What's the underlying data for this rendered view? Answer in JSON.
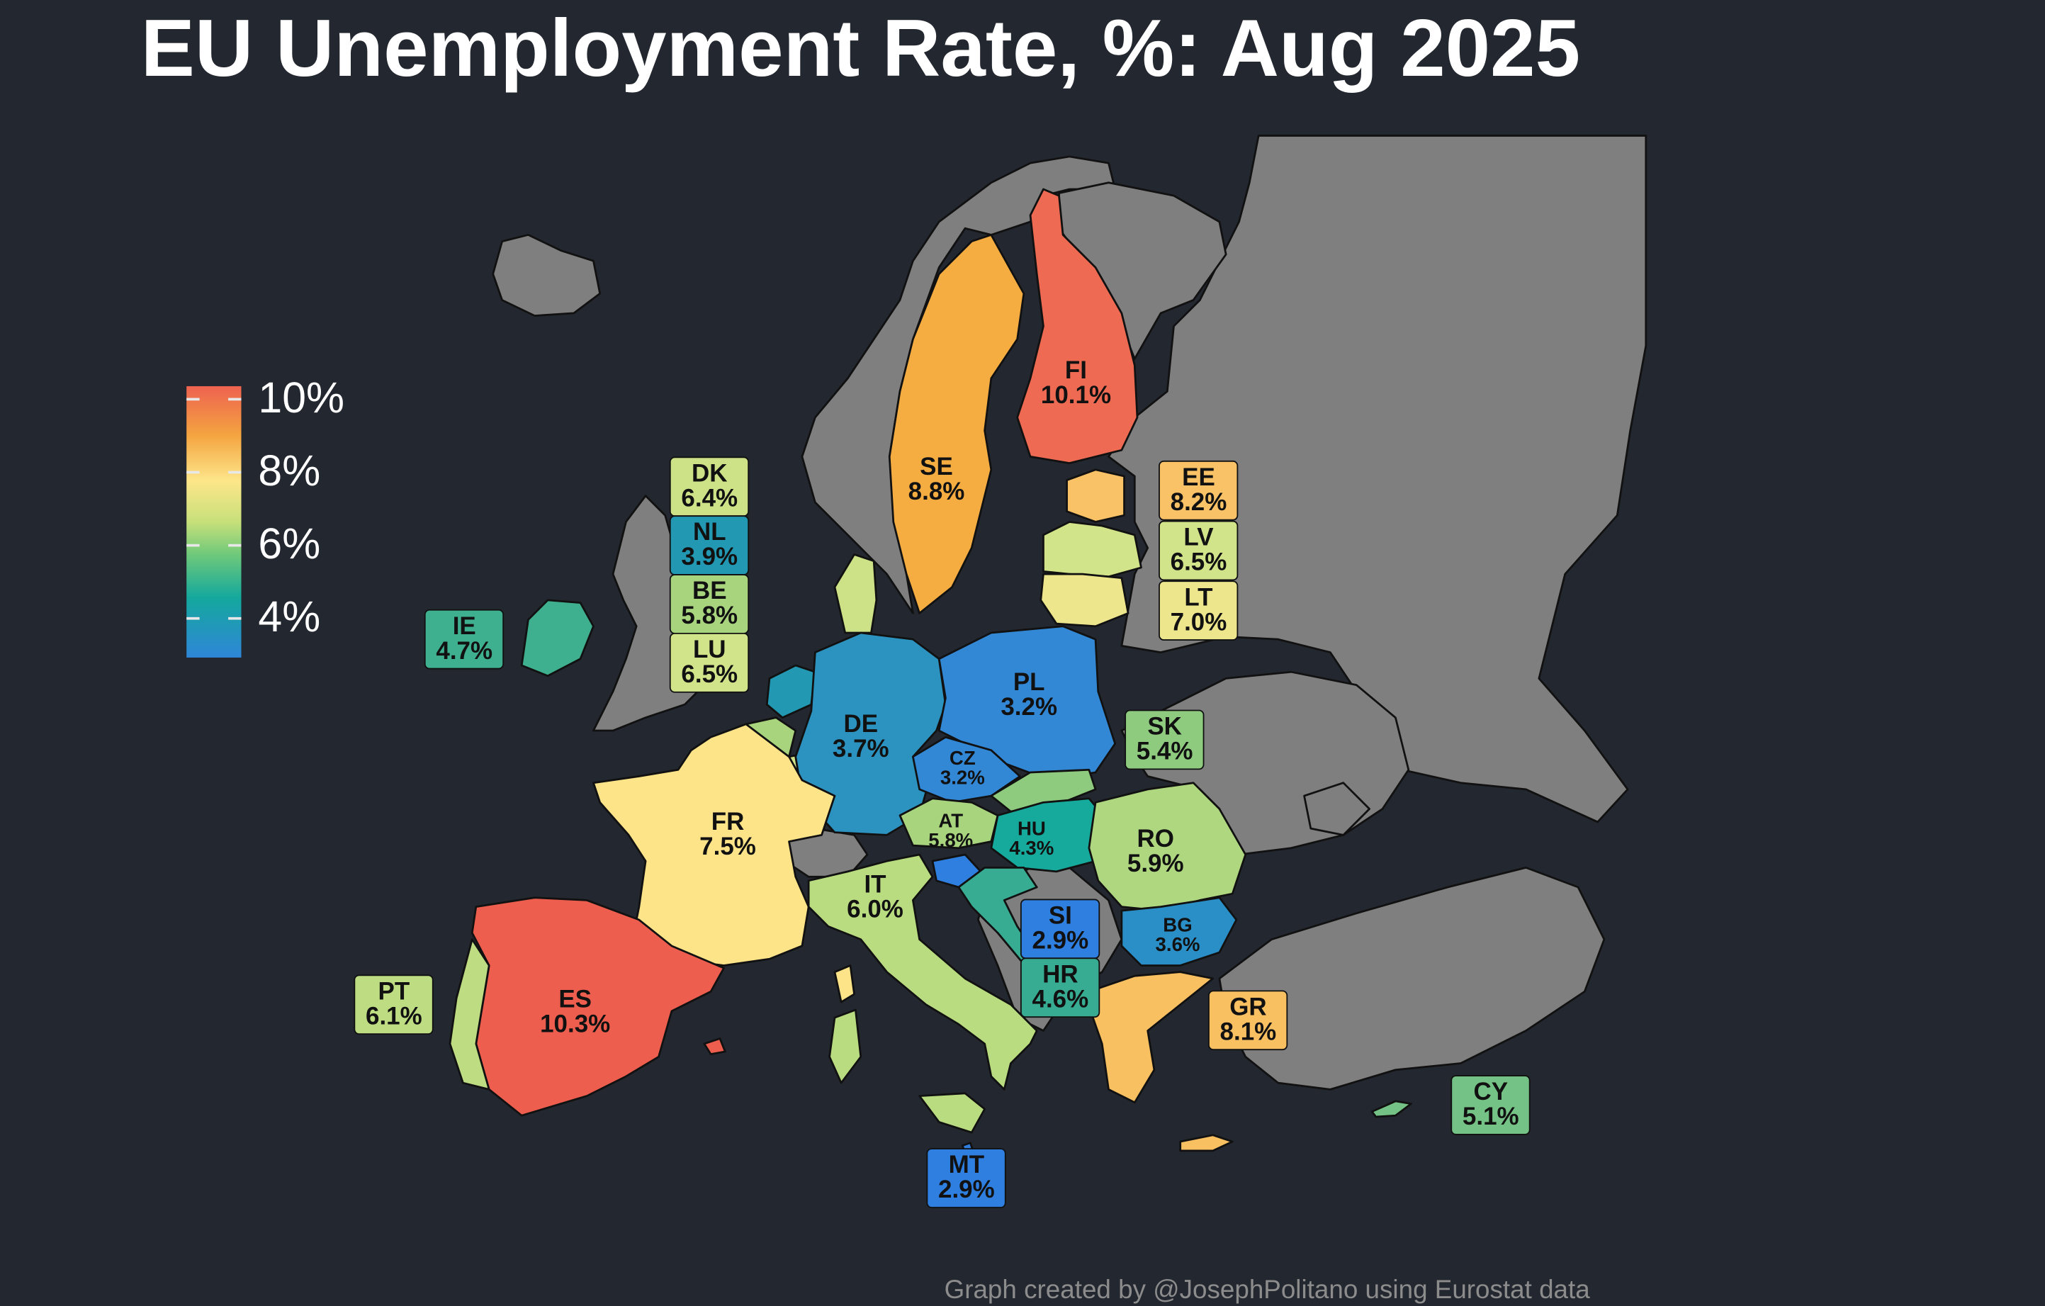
{
  "title": "EU Unemployment Rate, %: Aug 2025",
  "credit": "Graph created by @JosephPolitano using Eurostat data",
  "legend": {
    "ticks": [
      "10%",
      "8%",
      "6%",
      "4%"
    ],
    "colors": {
      "high": "#ee6250",
      "mid_high": "#f4a440",
      "mid": "#fde68a",
      "mid_low": "#c7e07a",
      "low_green": "#6fc97a",
      "low_teal": "#14a89d",
      "lowest": "#2f86d8"
    }
  },
  "non_eu_color": "#7f7f7f",
  "background_color": "#23272f",
  "countries": [
    {
      "code": "FI",
      "label": "FI",
      "value": "10.1%",
      "color": "#ef6a52"
    },
    {
      "code": "SE",
      "label": "SE",
      "value": "8.8%",
      "color": "#f5ad42"
    },
    {
      "code": "DE",
      "label": "DE",
      "value": "3.7%",
      "color": "#2c93c0"
    },
    {
      "code": "PL",
      "label": "PL",
      "value": "3.2%",
      "color": "#3388d6"
    },
    {
      "code": "CZ",
      "label": "CZ",
      "value": "3.2%",
      "color": "#3388d6"
    },
    {
      "code": "FR",
      "label": "FR",
      "value": "7.5%",
      "color": "#fde488"
    },
    {
      "code": "ES",
      "label": "ES",
      "value": "10.3%",
      "color": "#ee5e4e"
    },
    {
      "code": "IT",
      "label": "IT",
      "value": "6.0%",
      "color": "#b9dc80"
    },
    {
      "code": "AT",
      "label": "AT",
      "value": "5.8%",
      "color": "#a9d47e"
    },
    {
      "code": "HU",
      "label": "HU",
      "value": "4.3%",
      "color": "#16aa9c"
    },
    {
      "code": "RO",
      "label": "RO",
      "value": "5.9%",
      "color": "#afd77f"
    },
    {
      "code": "BG",
      "label": "BG",
      "value": "3.6%",
      "color": "#2a8fc6"
    }
  ],
  "boxed": [
    {
      "code": "DK",
      "label": "DK",
      "value": "6.4%",
      "color": "#cde287"
    },
    {
      "code": "NL",
      "label": "NL",
      "value": "3.9%",
      "color": "#2298b3"
    },
    {
      "code": "BE",
      "label": "BE",
      "value": "5.8%",
      "color": "#a9d47e"
    },
    {
      "code": "LU",
      "label": "LU",
      "value": "6.5%",
      "color": "#d2e48a"
    },
    {
      "code": "IE",
      "label": "IE",
      "value": "4.7%",
      "color": "#3fb08f"
    },
    {
      "code": "EE",
      "label": "EE",
      "value": "8.2%",
      "color": "#f9c266"
    },
    {
      "code": "LV",
      "label": "LV",
      "value": "6.5%",
      "color": "#d2e48a"
    },
    {
      "code": "LT",
      "label": "LT",
      "value": "7.0%",
      "color": "#ede68c"
    },
    {
      "code": "SK",
      "label": "SK",
      "value": "5.4%",
      "color": "#8fcb7f"
    },
    {
      "code": "SI",
      "label": "SI",
      "value": "2.9%",
      "color": "#2f7fe0"
    },
    {
      "code": "HR",
      "label": "HR",
      "value": "4.6%",
      "color": "#37ac92"
    },
    {
      "code": "GR",
      "label": "GR",
      "value": "8.1%",
      "color": "#f9c062"
    },
    {
      "code": "PT",
      "label": "PT",
      "value": "6.1%",
      "color": "#bedd82"
    },
    {
      "code": "CY",
      "label": "CY",
      "value": "5.1%",
      "color": "#74c285"
    },
    {
      "code": "MT",
      "label": "MT",
      "value": "2.9%",
      "color": "#2f7fe0"
    }
  ]
}
